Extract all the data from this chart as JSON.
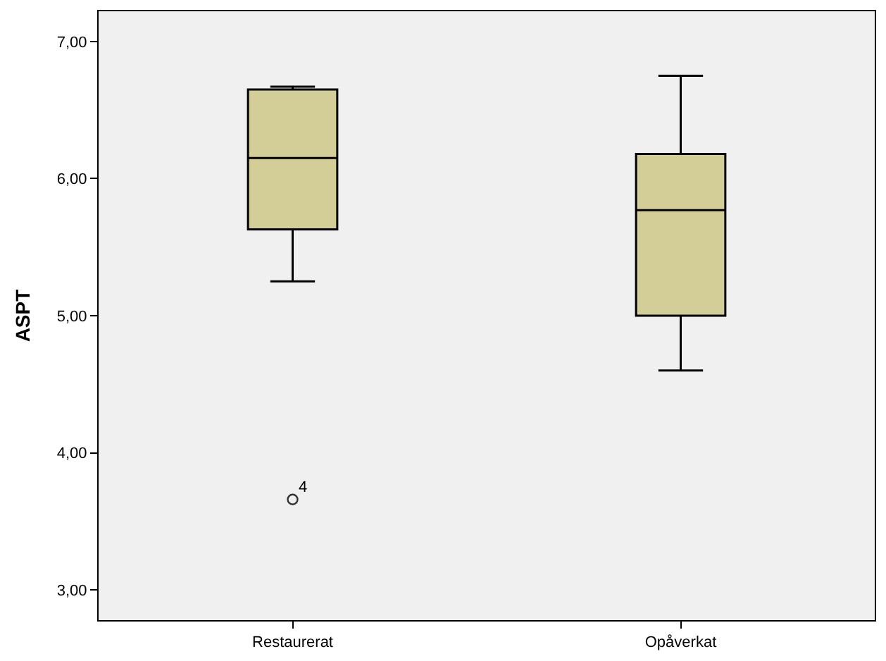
{
  "chart_data": {
    "type": "box",
    "ylabel": "ASPT",
    "categories": [
      "Restaurerat",
      "Opåverkat"
    ],
    "boxes": [
      {
        "low": 5.25,
        "q1": 5.63,
        "median": 6.15,
        "q3": 6.65,
        "high": 6.67,
        "outliers": [
          3.66
        ]
      },
      {
        "low": 4.6,
        "q1": 5.0,
        "median": 5.77,
        "q3": 6.18,
        "high": 6.75
      }
    ],
    "color": "#d3ce97",
    "ylim": [
      2.78,
      7.22
    ],
    "yticks": [
      {
        "value": 3,
        "label": "3,00"
      },
      {
        "value": 4,
        "label": "4,00"
      },
      {
        "value": 5,
        "label": "5,00"
      },
      {
        "value": 6,
        "label": "6,00"
      },
      {
        "value": 7,
        "label": "7,00"
      }
    ],
    "annotations": [
      "4"
    ]
  }
}
